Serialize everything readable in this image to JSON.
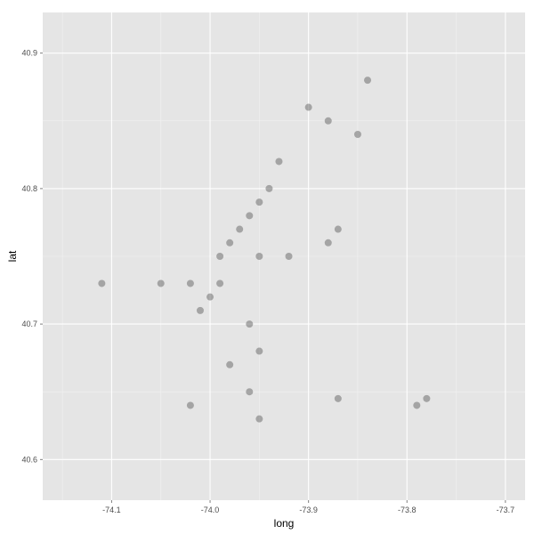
{
  "chart_data": {
    "type": "scatter",
    "title": "",
    "xlabel": "long",
    "ylabel": "lat",
    "xlim": [
      -74.17,
      -73.68
    ],
    "ylim": [
      40.57,
      40.93
    ],
    "xticks": [
      -74.1,
      -74.0,
      -73.9,
      -73.8,
      -73.7
    ],
    "yticks": [
      40.6,
      40.7,
      40.8,
      40.9
    ],
    "xtick_labels": [
      "-74.1",
      "-74.0",
      "-73.9",
      "-73.8",
      "-73.7"
    ],
    "ytick_labels": [
      "40.6",
      "40.7",
      "40.8",
      "40.9"
    ],
    "grid": true,
    "legend": "none",
    "colors": {
      "panel": "#e5e5e5",
      "grid_major": "#ffffff",
      "grid_minor": "#f2f2f2",
      "points": "#555555"
    },
    "series": [
      {
        "points_approx": [
          [
            -73.98,
            40.76
          ],
          [
            -73.99,
            40.75
          ],
          [
            -73.97,
            40.77
          ],
          [
            -73.96,
            40.78
          ],
          [
            -73.95,
            40.79
          ],
          [
            -73.94,
            40.8
          ],
          [
            -73.93,
            40.82
          ],
          [
            -73.99,
            40.73
          ],
          [
            -74.0,
            40.72
          ],
          [
            -74.01,
            40.71
          ],
          [
            -73.95,
            40.75
          ],
          [
            -73.92,
            40.75
          ],
          [
            -73.88,
            40.76
          ],
          [
            -73.87,
            40.77
          ],
          [
            -73.87,
            40.645
          ],
          [
            -73.78,
            40.645
          ],
          [
            -73.79,
            40.64
          ],
          [
            -73.96,
            40.7
          ],
          [
            -73.95,
            40.68
          ],
          [
            -73.98,
            40.67
          ],
          [
            -73.96,
            40.65
          ],
          [
            -73.95,
            40.63
          ],
          [
            -73.9,
            40.86
          ],
          [
            -73.88,
            40.85
          ],
          [
            -73.85,
            40.84
          ],
          [
            -73.84,
            40.88
          ],
          [
            -74.02,
            40.73
          ],
          [
            -74.05,
            40.73
          ],
          [
            -74.11,
            40.73
          ],
          [
            -74.02,
            40.64
          ]
        ]
      }
    ]
  }
}
